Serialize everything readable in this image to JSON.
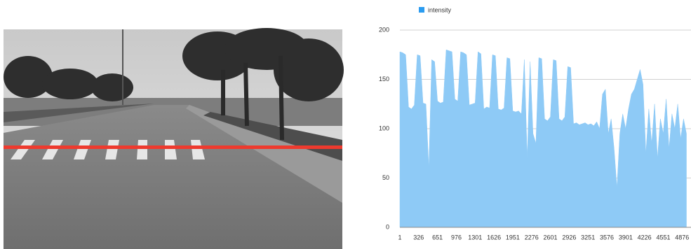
{
  "chart_data": {
    "type": "area",
    "x": [
      1,
      51,
      101,
      151,
      201,
      251,
      301,
      351,
      401,
      451,
      501,
      551,
      601,
      651,
      701,
      751,
      801,
      851,
      901,
      951,
      1001,
      1051,
      1101,
      1151,
      1201,
      1251,
      1301,
      1351,
      1401,
      1451,
      1501,
      1551,
      1601,
      1651,
      1701,
      1751,
      1801,
      1851,
      1901,
      1951,
      2001,
      2051,
      2101,
      2151,
      2201,
      2251,
      2301,
      2351,
      2401,
      2451,
      2501,
      2551,
      2601,
      2651,
      2701,
      2751,
      2801,
      2851,
      2901,
      2951,
      3001,
      3051,
      3101,
      3151,
      3201,
      3251,
      3301,
      3351,
      3401,
      3451,
      3501,
      3551,
      3601,
      3651,
      3701,
      3751,
      3801,
      3851,
      3901,
      3951,
      4001,
      4051,
      4101,
      4151,
      4201,
      4251,
      4301,
      4351,
      4401,
      4451,
      4501,
      4551,
      4601,
      4651,
      4701,
      4751,
      4801,
      4851,
      4901,
      4951
    ],
    "series": [
      {
        "name": "intensity",
        "color": "#8ecaf6",
        "values": [
          178,
          177,
          175,
          122,
          120,
          124,
          175,
          174,
          126,
          125,
          60,
          170,
          168,
          128,
          126,
          127,
          180,
          179,
          178,
          130,
          128,
          178,
          177,
          175,
          124,
          125,
          126,
          178,
          176,
          120,
          122,
          121,
          175,
          174,
          120,
          119,
          121,
          172,
          171,
          118,
          117,
          118,
          115,
          170,
          70,
          168,
          95,
          85,
          172,
          171,
          110,
          108,
          112,
          170,
          169,
          110,
          108,
          112,
          163,
          162,
          105,
          106,
          104,
          105,
          106,
          104,
          105,
          103,
          107,
          100,
          135,
          140,
          95,
          110,
          80,
          40,
          95,
          115,
          100,
          120,
          135,
          140,
          150,
          160,
          145,
          75,
          120,
          85,
          125,
          70,
          110,
          95,
          130,
          80,
          115,
          100,
          125,
          90,
          110,
          95
        ]
      }
    ],
    "xlim": [
      1,
      5030
    ],
    "xticks": [
      1,
      326,
      651,
      976,
      1301,
      1626,
      1951,
      2276,
      2601,
      2926,
      3251,
      3576,
      3901,
      4226,
      4551,
      4876
    ],
    "ylim": [
      0,
      200
    ],
    "yticks": [
      0,
      50,
      100,
      150,
      200
    ],
    "grid": true
  }
}
